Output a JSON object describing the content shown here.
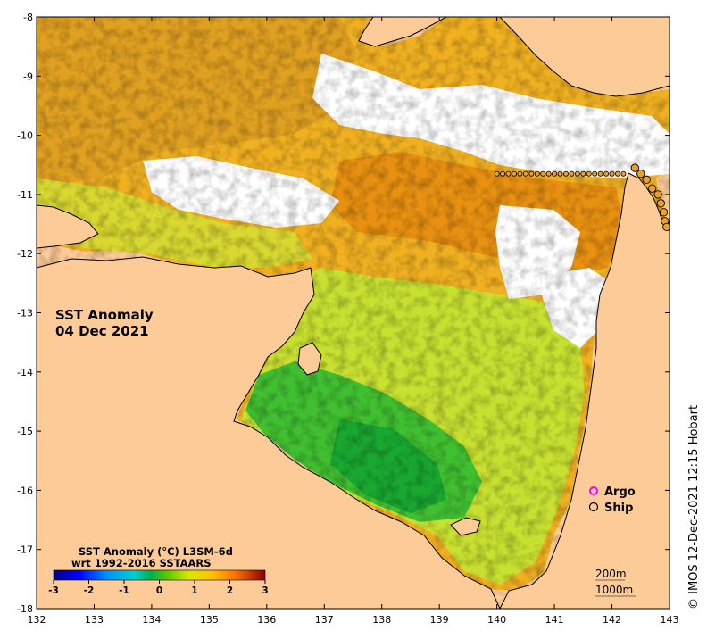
{
  "map": {
    "title_line1": "SST Anomaly",
    "title_line2": "04 Dec 2021",
    "credit": "© IMOS 12-Dec-2021 12:15 Hobart",
    "colors": {
      "land": "#fccb97",
      "nodata": "#ffffff",
      "coast": "#000000"
    },
    "lon_ticks": [
      "132",
      "133",
      "134",
      "135",
      "136",
      "137",
      "138",
      "139",
      "140",
      "141",
      "142",
      "143"
    ],
    "lat_ticks": [
      "-8",
      "-9",
      "-10",
      "-11",
      "-12",
      "-13",
      "-14",
      "-15",
      "-16",
      "-17",
      "-18"
    ]
  },
  "legend": {
    "argo_label": "Argo",
    "ship_label": "Ship",
    "argo_color": "#ff00ff",
    "ship_color": "#000000"
  },
  "colorbar": {
    "title_line1": "SST Anomaly (°C) L3SM-6d",
    "title_line2": "wrt 1992-2016 SSTAARS",
    "ticks": [
      "-3",
      "-2",
      "-1",
      "0",
      "1",
      "2",
      "3"
    ],
    "colors": [
      "#000080",
      "#0000ff",
      "#0080ff",
      "#00c0ff",
      "#00d080",
      "#00b000",
      "#80d000",
      "#e8e800",
      "#ffc000",
      "#ff8000",
      "#c04000",
      "#900000"
    ]
  },
  "contours": {
    "label1": "200m",
    "label2": "1000m"
  },
  "chart_data": {
    "type": "map",
    "title": "SST Anomaly",
    "subtitle": "04 Dec 2021",
    "x_range": [
      132,
      143
    ],
    "y_range": [
      -18,
      -8
    ],
    "colorbar_range": [
      -3,
      3
    ],
    "ship_track_lat": -10.65,
    "ship_track_lon": [
      140.0,
      142.2
    ]
  }
}
